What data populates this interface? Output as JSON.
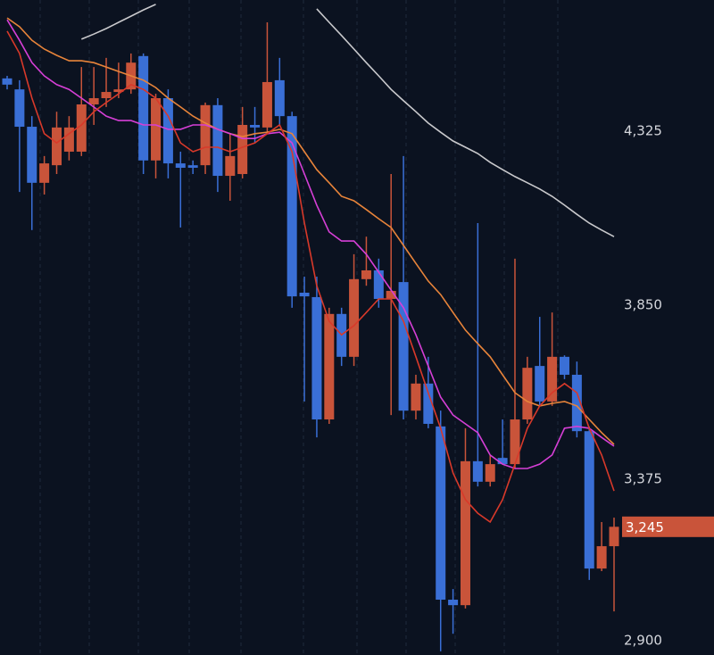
{
  "chart_data": {
    "type": "candlestick",
    "ylim": [
      2895,
      4683
    ],
    "yticks": [
      {
        "value": 4325,
        "label": "4,325"
      },
      {
        "value": 3850,
        "label": "3,850"
      },
      {
        "value": 3375,
        "label": "3,375"
      },
      {
        "value": 2900,
        "label": "2,900"
      }
    ],
    "up_color": "#c9543a",
    "down_color": "#3a6fd6",
    "candles": {
      "open": [
        4469,
        4439,
        4337,
        4184,
        4232,
        4269,
        4269,
        4398,
        4415,
        4432,
        4439,
        4530,
        4245,
        4415,
        4237,
        4232,
        4232,
        4396,
        4203,
        4208,
        4342,
        4335,
        4464,
        4366,
        3884,
        3872,
        3538,
        3826,
        3709,
        3921,
        3945,
        3867,
        3913,
        3562,
        3636,
        3519,
        3046,
        3031,
        3424,
        3368,
        3433,
        3416,
        3538,
        3684,
        3587,
        3709,
        3660,
        3506,
        3131,
        3192
      ],
      "close": [
        4452,
        4337,
        4184,
        4237,
        4335,
        4335,
        4398,
        4415,
        4432,
        4439,
        4512,
        4245,
        4415,
        4237,
        4225,
        4225,
        4396,
        4203,
        4257,
        4342,
        4335,
        4459,
        4366,
        3874,
        3874,
        3538,
        3826,
        3709,
        3921,
        3945,
        3867,
        3889,
        3562,
        3636,
        3526,
        3046,
        3031,
        3424,
        3368,
        3416,
        3416,
        3538,
        3679,
        3587,
        3709,
        3660,
        3506,
        3131,
        3192,
        3245
      ],
      "high": [
        4476,
        4464,
        4366,
        4257,
        4378,
        4366,
        4500,
        4500,
        4525,
        4512,
        4537,
        4537,
        4427,
        4439,
        4269,
        4245,
        4403,
        4415,
        4318,
        4391,
        4391,
        4622,
        4525,
        4378,
        3928,
        3928,
        3843,
        3843,
        3989,
        4037,
        3977,
        4208,
        4257,
        3660,
        3709,
        3562,
        3075,
        3514,
        4074,
        3441,
        3538,
        3977,
        3709,
        3818,
        3830,
        3713,
        3696,
        3519,
        3258,
        3270
      ],
      "low": [
        4439,
        4159,
        4055,
        4152,
        4208,
        4245,
        4257,
        4342,
        4391,
        4415,
        4427,
        4208,
        4196,
        4196,
        4062,
        4208,
        4208,
        4159,
        4135,
        4196,
        4293,
        4318,
        4342,
        3843,
        3587,
        3489,
        3526,
        3684,
        3684,
        3903,
        3843,
        3550,
        3538,
        3538,
        3514,
        2905,
        2953,
        3022,
        3355,
        3355,
        3416,
        3404,
        3526,
        3575,
        3575,
        3648,
        3489,
        3100,
        3124,
        3014
      ]
    },
    "lines": [
      {
        "color": "#c9c9cc",
        "values": [
          null,
          null,
          null,
          null,
          null,
          null,
          4576,
          4590,
          4605,
          4622,
          4639,
          4656,
          4671,
          null,
          null,
          null,
          null,
          null,
          null,
          null,
          null,
          null,
          null,
          null,
          null,
          4659,
          4622,
          4586,
          4549,
          4512,
          4476,
          4439,
          4408,
          4378,
          4347,
          4322,
          4298,
          4281,
          4264,
          4240,
          4220,
          4201,
          4184,
          4167,
          4147,
          4123,
          4098,
          4074,
          4055,
          4037
        ]
      },
      {
        "color": "#e8843a",
        "values": [
          4634,
          4610,
          4573,
          4549,
          4532,
          4517,
          4517,
          4512,
          4500,
          4488,
          4476,
          4464,
          4444,
          4415,
          4391,
          4366,
          4347,
          4330,
          4318,
          4310,
          4318,
          4322,
          4330,
          4318,
          4269,
          4220,
          4184,
          4147,
          4135,
          4111,
          4086,
          4062,
          4013,
          3964,
          3916,
          3879,
          3830,
          3782,
          3745,
          3709,
          3660,
          3611,
          3587,
          3575,
          3582,
          3587,
          3575,
          3538,
          3502,
          3470
        ]
      },
      {
        "color": "#d63fd6",
        "values": [
          4629,
          4573,
          4512,
          4476,
          4452,
          4439,
          4415,
          4391,
          4366,
          4354,
          4354,
          4342,
          4342,
          4330,
          4330,
          4342,
          4342,
          4330,
          4318,
          4305,
          4305,
          4318,
          4322,
          4293,
          4208,
          4123,
          4050,
          4025,
          4025,
          3989,
          3940,
          3891,
          3843,
          3769,
          3684,
          3599,
          3550,
          3526,
          3502,
          3441,
          3416,
          3404,
          3404,
          3416,
          3441,
          3514,
          3519,
          3514,
          3489,
          3465
        ]
      },
      {
        "color": "#d8392a",
        "values": [
          4598,
          4537,
          4415,
          4318,
          4293,
          4318,
          4342,
          4378,
          4403,
          4427,
          4452,
          4439,
          4415,
          4366,
          4293,
          4269,
          4281,
          4281,
          4269,
          4281,
          4293,
          4318,
          4342,
          4269,
          4074,
          3903,
          3806,
          3769,
          3794,
          3830,
          3867,
          3867,
          3806,
          3709,
          3611,
          3514,
          3392,
          3319,
          3282,
          3258,
          3319,
          3416,
          3514,
          3575,
          3611,
          3636,
          3611,
          3514,
          3441,
          3343
        ]
      }
    ],
    "last_price": {
      "value": 3245,
      "label": "3,245"
    }
  }
}
